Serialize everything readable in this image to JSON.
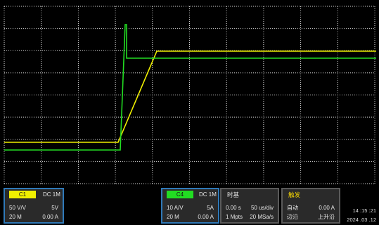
{
  "colors": {
    "ch1": "#f0f000",
    "ch4": "#22dd22",
    "background": "#000000",
    "grid": "#ffffff",
    "panel_bg": "#2a2a2a",
    "panel_border_active": "#2f79b8",
    "panel_border": "#5a5a5a",
    "trigger_title": "#ffdd00"
  },
  "ch1": {
    "label": "C1",
    "coupling": "DC 1M",
    "ratio": "50 V/V",
    "scale": "5V",
    "bandwidth": "20 M",
    "offset": "0.00 A"
  },
  "ch4": {
    "label": "C4",
    "coupling": "DC 1M",
    "ratio": "10 A/V",
    "scale": "5A",
    "bandwidth": "20 M",
    "offset": "0.00 A"
  },
  "timebase": {
    "title": "时基",
    "delay": "0.00 s",
    "scale": "50 us/div",
    "memory": "1 Mpts",
    "sample_rate": "20 MSa/s"
  },
  "trigger": {
    "title": "触发",
    "mode": "自动",
    "level": "0.00 A",
    "type": "边沿",
    "slope": "上升沿"
  },
  "clock": {
    "time": "14 :15 :21",
    "date": "2024 .03 .12"
  }
}
